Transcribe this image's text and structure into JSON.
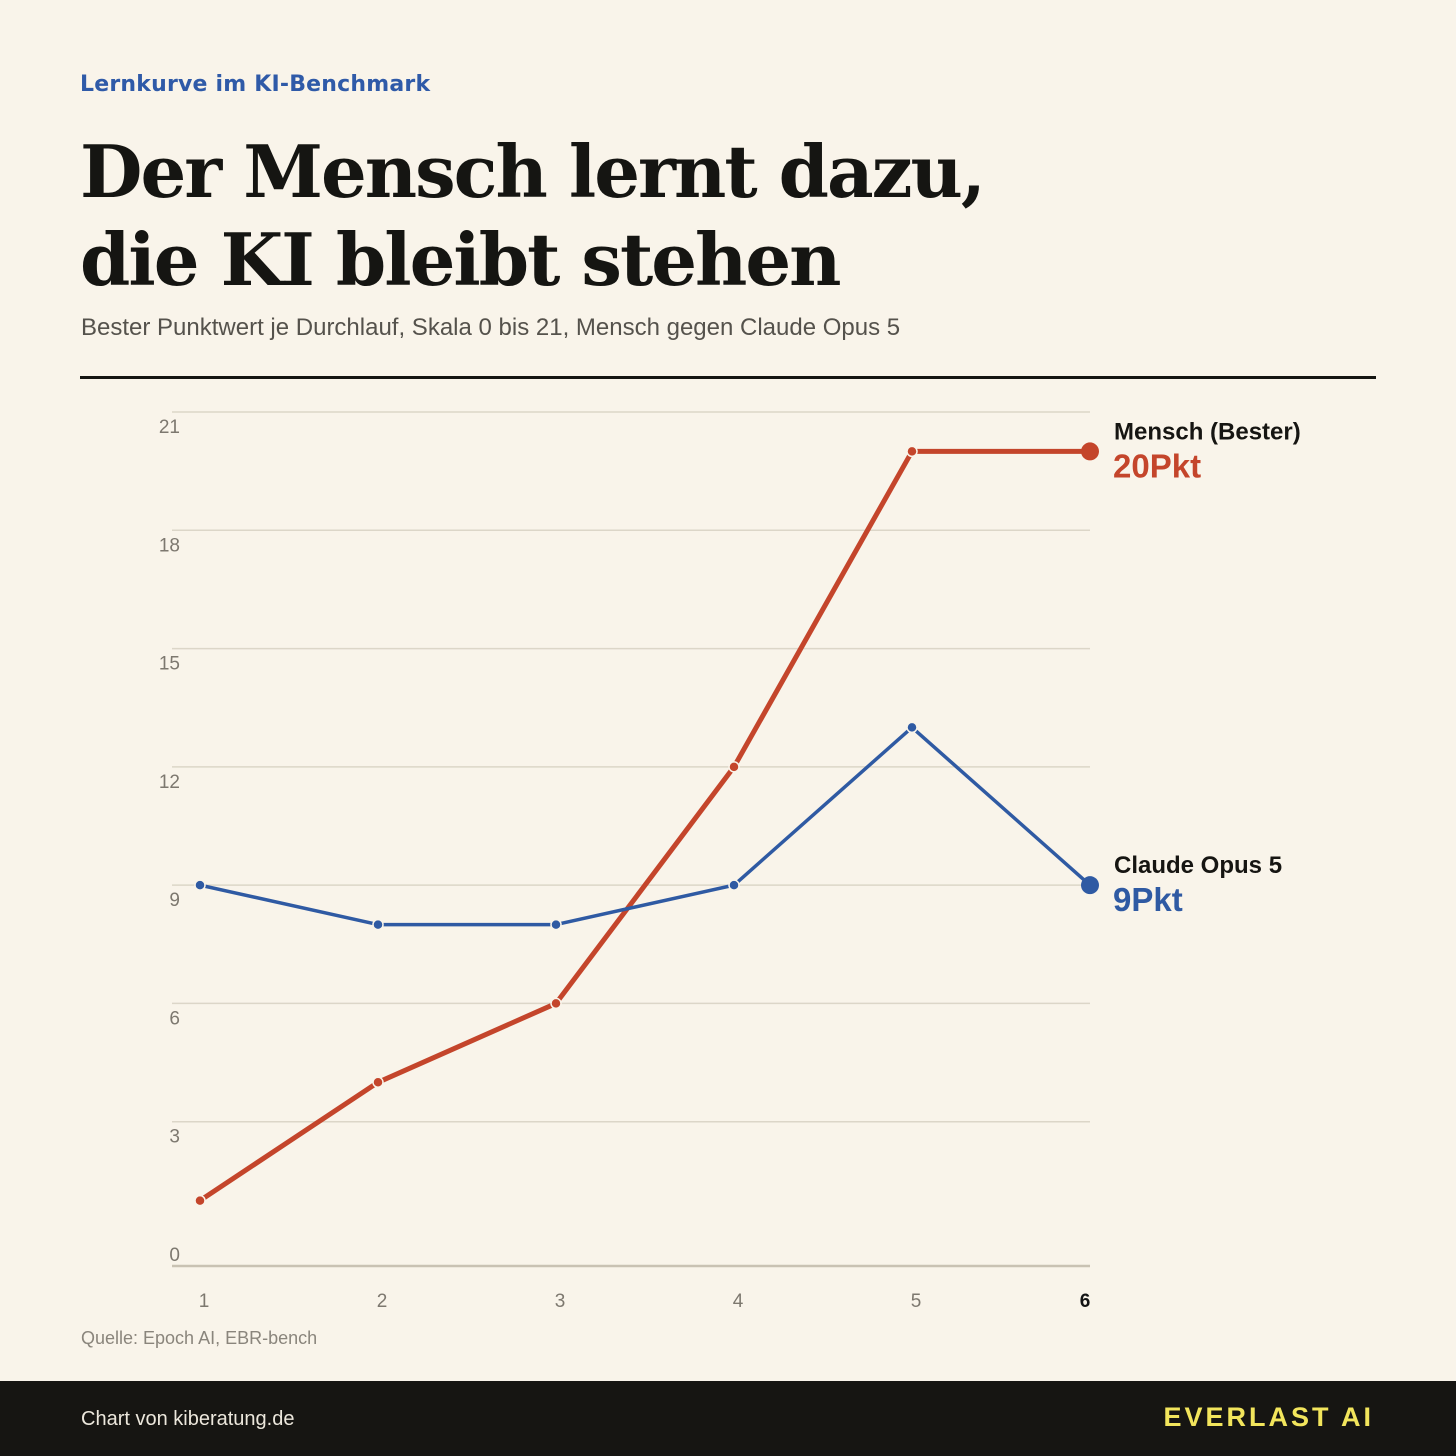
{
  "header": {
    "kicker": "Lernkurve im KI-Benchmark",
    "title_line1": "Der Mensch lernt dazu,",
    "title_line2": "die KI bleibt stehen",
    "subtitle": "Bester Punktwert je Durchlauf, Skala 0 bis 21, Mensch gegen Claude Opus 5"
  },
  "source": "Quelle: Epoch AI, EBR-bench",
  "footer": {
    "credit": "Chart von kiberatung.de",
    "brand": "EVERLAST AI"
  },
  "colors": {
    "human": "#c4452b",
    "ai": "#2f5aa3",
    "grid": "#dcd6c8",
    "axis": "#c9c2b3"
  },
  "chart_data": {
    "type": "line",
    "x": [
      1,
      2,
      3,
      4,
      5,
      6
    ],
    "xlabel": "",
    "ylabel": "",
    "ylim": [
      0,
      21
    ],
    "yticks": [
      0,
      3,
      6,
      9,
      12,
      15,
      18,
      21
    ],
    "grid": true,
    "series": [
      {
        "key": "human",
        "name": "Mensch (Bester)",
        "end_label": "20Pkt",
        "values": [
          1,
          4,
          6,
          12,
          20,
          20
        ]
      },
      {
        "key": "ai",
        "name": "Claude Opus 5",
        "end_label": "9Pkt",
        "values": [
          9,
          8,
          8,
          9,
          13,
          9
        ]
      }
    ]
  }
}
